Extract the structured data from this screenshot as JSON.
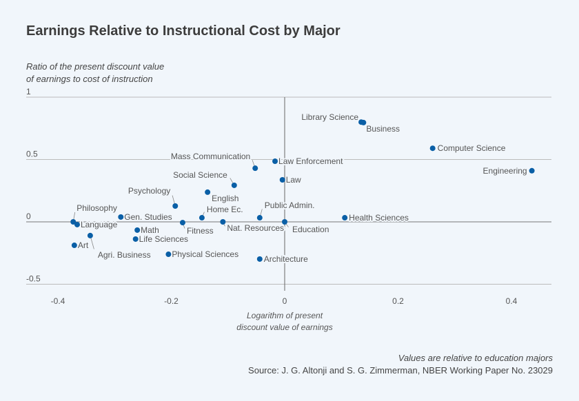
{
  "chart_data": {
    "type": "scatter",
    "title": "Earnings Relative to Instructional Cost by Major",
    "ylabel_line1": "Ratio of the present discount value",
    "ylabel_line2": "of earnings to cost of instruction",
    "xlabel_line1": "Logarithm of present",
    "xlabel_line2": "discount value of earnings",
    "xlim": [
      -0.45,
      0.47
    ],
    "ylim": [
      -0.5,
      1.0
    ],
    "xticks": [
      -0.4,
      -0.2,
      0,
      0.2,
      0.4
    ],
    "xtick_labels": [
      "-0.4",
      "-0.2",
      "0",
      "0.2",
      "0.4"
    ],
    "yticks": [
      1,
      0.5,
      0,
      -0.5
    ],
    "ytick_labels": [
      "1",
      "0.5",
      "0",
      "-0.5"
    ],
    "grid": "horizontal",
    "color": "#0a5fa6",
    "points": [
      {
        "label": "Library Science",
        "x": 0.135,
        "y": 0.8
      },
      {
        "label": "Business",
        "x": 0.139,
        "y": 0.796
      },
      {
        "label": "Computer Science",
        "x": 0.261,
        "y": 0.59
      },
      {
        "label": "Engineering",
        "x": 0.436,
        "y": 0.41
      },
      {
        "label": "Law Enforcement",
        "x": -0.017,
        "y": 0.486
      },
      {
        "label": "Mass Communication",
        "x": -0.052,
        "y": 0.43
      },
      {
        "label": "Law",
        "x": -0.004,
        "y": 0.337
      },
      {
        "label": "Social Science",
        "x": -0.089,
        "y": 0.293
      },
      {
        "label": "English",
        "x": -0.136,
        "y": 0.238
      },
      {
        "label": "Psychology",
        "x": -0.193,
        "y": 0.127
      },
      {
        "label": "Home Ec.",
        "x": -0.146,
        "y": 0.033
      },
      {
        "label": "Public Admin.",
        "x": -0.044,
        "y": 0.033
      },
      {
        "label": "Health Sciences",
        "x": 0.106,
        "y": 0.033
      },
      {
        "label": "Gen. Studies",
        "x": -0.289,
        "y": 0.039
      },
      {
        "label": "Philosophy",
        "x": -0.373,
        "y": 0.0
      },
      {
        "label": "Language",
        "x": -0.366,
        "y": -0.022
      },
      {
        "label": "Fitness",
        "x": -0.18,
        "y": -0.006
      },
      {
        "label": "Nat. Resources",
        "x": -0.109,
        "y": 0.0
      },
      {
        "label": "Education",
        "x": 0.0,
        "y": 0.0
      },
      {
        "label": "Math",
        "x": -0.26,
        "y": -0.066
      },
      {
        "label": "Life Sciences",
        "x": -0.263,
        "y": -0.138
      },
      {
        "label": "Agri. Business",
        "x": -0.343,
        "y": -0.11
      },
      {
        "label": "Art",
        "x": -0.371,
        "y": -0.188
      },
      {
        "label": "Physical Sciences",
        "x": -0.205,
        "y": -0.26
      },
      {
        "label": "Architecture",
        "x": -0.044,
        "y": -0.298
      }
    ],
    "note": "Values are relative to education majors",
    "source": "Source: J. G. Altonji and S. G. Zimmerman, NBER Working Paper No. 23029"
  }
}
